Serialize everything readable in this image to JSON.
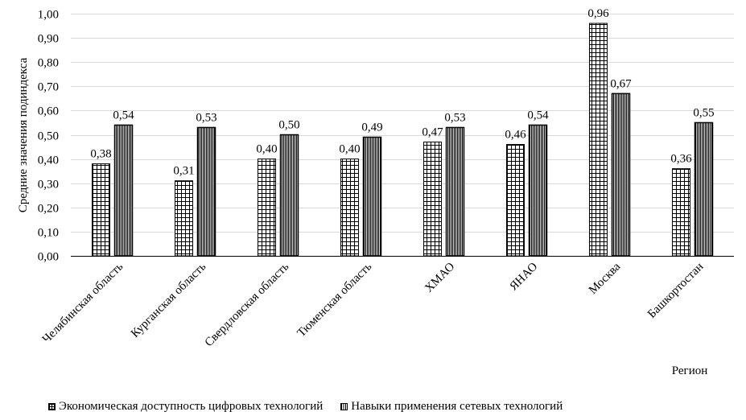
{
  "chart_data": {
    "type": "bar",
    "categories": [
      "Челябинская область",
      "Курганская область",
      "Свердловская область",
      "Тюменская область",
      "ХМАО",
      "ЯНАО",
      "Москва",
      "Башкортостан"
    ],
    "series": [
      {
        "name": "Экономическая доступность цифровых технологий",
        "values": [
          0.38,
          0.31,
          0.4,
          0.4,
          0.47,
          0.46,
          0.96,
          0.36
        ]
      },
      {
        "name": "Навыки применения сетевых технологий",
        "values": [
          0.54,
          0.53,
          0.5,
          0.49,
          0.53,
          0.54,
          0.67,
          0.55
        ]
      }
    ],
    "value_labels": [
      [
        "0,38",
        "0,31",
        "0,40",
        "0,40",
        "0,47",
        "0,46",
        "0,96",
        "0,36"
      ],
      [
        "0,54",
        "0,53",
        "0,50",
        "0,49",
        "0,53",
        "0,54",
        "0,67",
        "0,55"
      ]
    ],
    "xlabel": "Регион",
    "ylabel": "Средние значения подиндекса",
    "ylim": [
      0,
      1
    ],
    "yticks": [
      0,
      0.1,
      0.2,
      0.3,
      0.4,
      0.5,
      0.6,
      0.7,
      0.8,
      0.9,
      1.0
    ],
    "ytick_labels": [
      "0,00",
      "0,10",
      "0,20",
      "0,30",
      "0,40",
      "0,50",
      "0,60",
      "0,70",
      "0,80",
      "0,90",
      "1,00"
    ],
    "grid": true,
    "legend_position": "bottom",
    "patterns": [
      "grid-hatch",
      "vertical-stripes"
    ]
  }
}
